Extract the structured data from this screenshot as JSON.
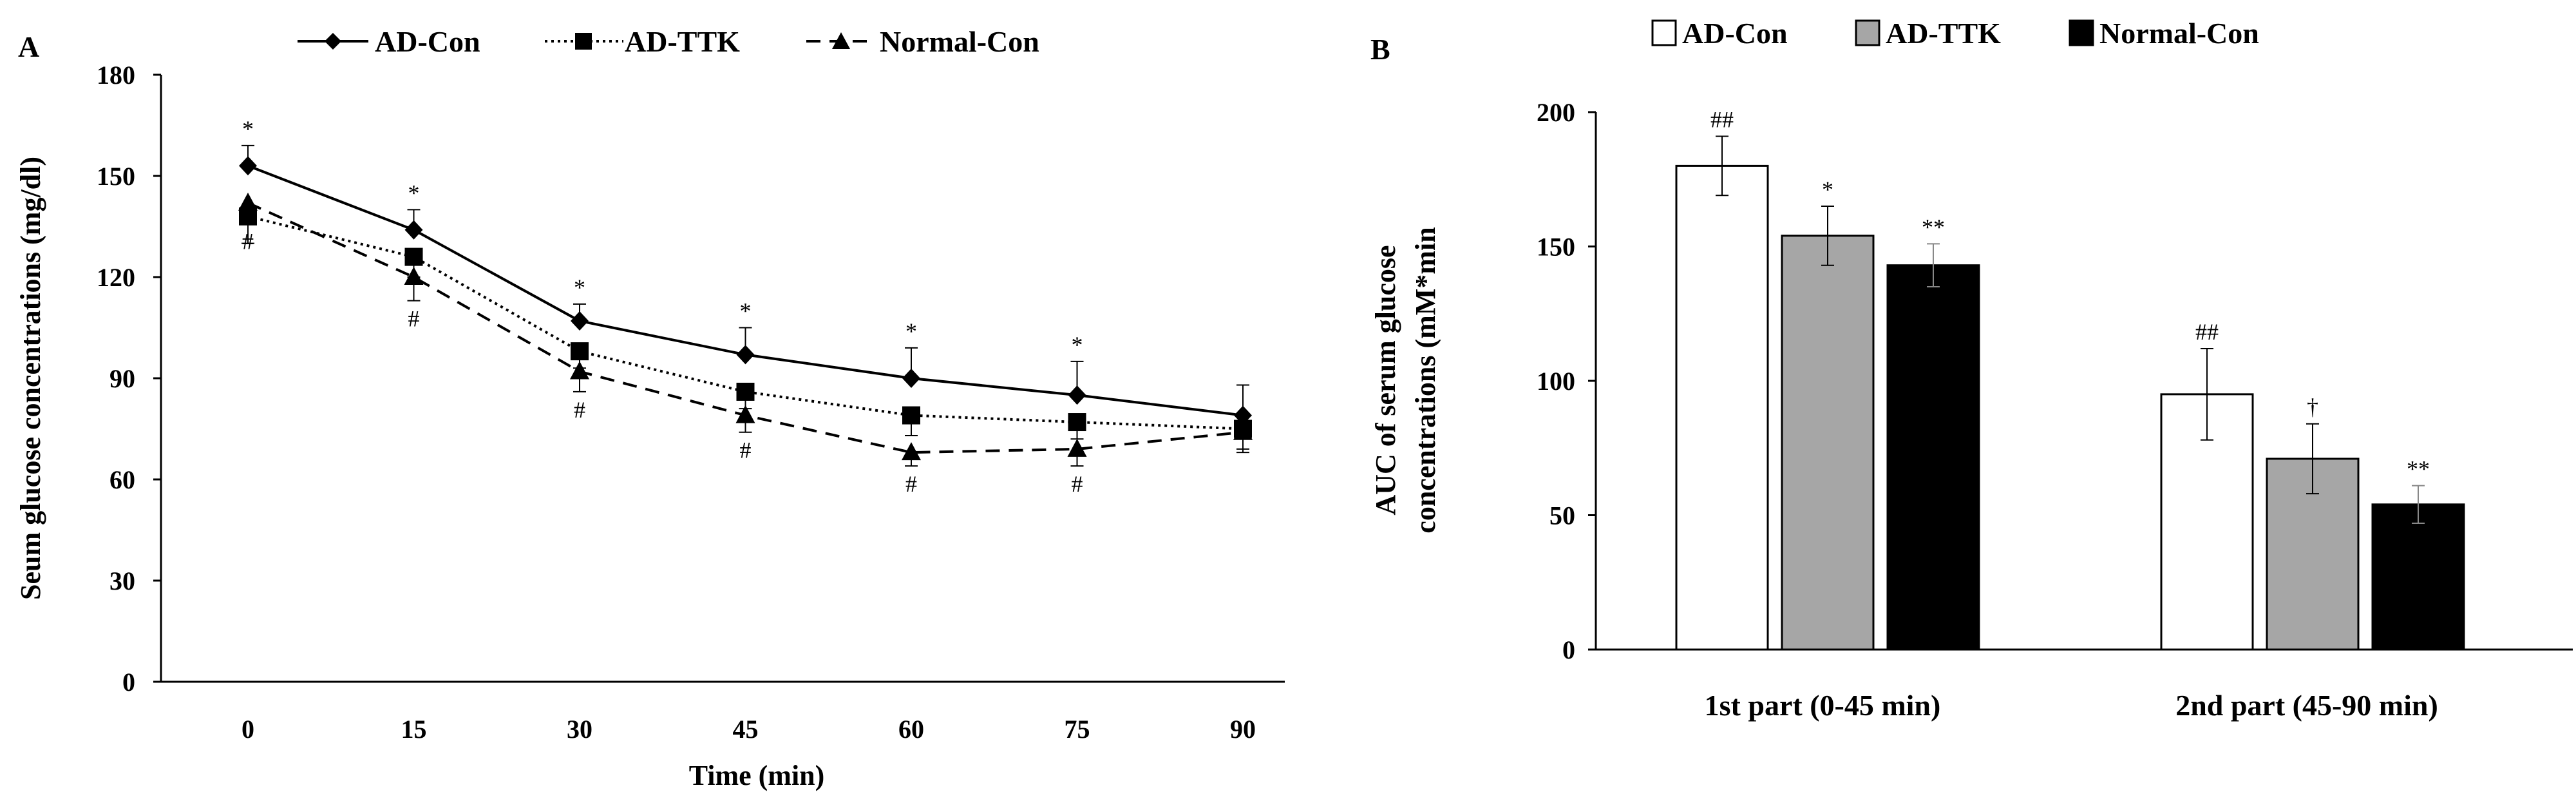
{
  "chart_data": [
    {
      "type": "line",
      "panel": "A",
      "title": "",
      "xlabel": "Time (min)",
      "ylabel": "Seum glucose concentrations (mg/dl)",
      "x": [
        0,
        15,
        30,
        45,
        60,
        75,
        90
      ],
      "x_tick_labels": [
        "0",
        "15",
        "30",
        "45",
        "60",
        "75",
        "90"
      ],
      "ylim": [
        0,
        180
      ],
      "y_ticks": [
        0,
        30,
        60,
        90,
        120,
        150,
        180
      ],
      "y_tick_labels": [
        "0",
        "30",
        "60",
        "90",
        "120",
        "150",
        "180"
      ],
      "legend_position": "top",
      "series": [
        {
          "name": "AD-Con",
          "marker": "diamond",
          "line_style": "solid",
          "values": [
            153,
            134,
            107,
            97,
            90,
            85,
            79
          ],
          "errors": [
            6,
            6,
            5,
            8,
            9,
            10,
            9
          ],
          "error_direction": "up",
          "annotations": [
            "*",
            "*",
            "*",
            "*",
            "*",
            "*",
            ""
          ]
        },
        {
          "name": "AD-TTK",
          "marker": "square",
          "line_style": "dotted",
          "values": [
            138,
            126,
            98,
            86,
            79,
            77,
            75
          ],
          "errors": [
            8,
            6,
            5,
            5,
            6,
            5,
            6
          ],
          "error_direction": "down",
          "annotations": [
            "",
            "",
            "",
            "",
            "",
            "",
            ""
          ]
        },
        {
          "name": "Normal-Con",
          "marker": "triangle",
          "line_style": "dashed",
          "values": [
            142,
            120,
            92,
            79,
            68,
            69,
            74
          ],
          "errors": [
            6,
            7,
            6,
            5,
            4,
            5,
            6
          ],
          "error_direction": "down",
          "annotations": [
            "#",
            "#",
            "#",
            "#",
            "#",
            "#",
            ""
          ]
        }
      ]
    },
    {
      "type": "bar",
      "panel": "B",
      "title": "",
      "xlabel": "",
      "ylabel_lines": [
        "AUC of serum glucose",
        "concentrations (mM*min"
      ],
      "categories": [
        "1st part (0-45 min)",
        "2nd part (45-90 min)"
      ],
      "ylim": [
        0,
        200
      ],
      "y_ticks": [
        0,
        50,
        100,
        150,
        200
      ],
      "y_tick_labels": [
        "0",
        "50",
        "100",
        "150",
        "200"
      ],
      "legend_position": "top",
      "series": [
        {
          "name": "AD-Con",
          "color": "#ffffff",
          "values": [
            180,
            95
          ],
          "errors": [
            11,
            17
          ],
          "annotations": [
            "##",
            "##"
          ]
        },
        {
          "name": "AD-TTK",
          "color": "#a6a6a6",
          "values": [
            154,
            71
          ],
          "errors": [
            11,
            13
          ],
          "annotations": [
            "*",
            "†"
          ]
        },
        {
          "name": "Normal-Con",
          "color": "#000000",
          "values": [
            143,
            54
          ],
          "errors": [
            8,
            7
          ],
          "annotations": [
            "**",
            "**"
          ]
        }
      ]
    }
  ]
}
